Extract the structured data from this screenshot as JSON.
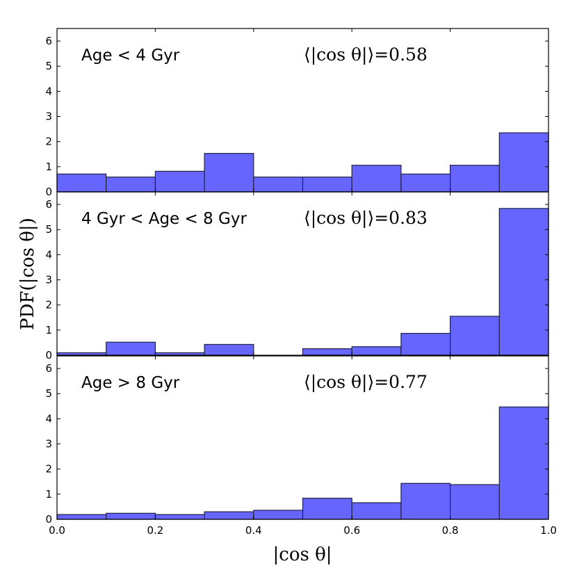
{
  "chart_data": {
    "type": "bar",
    "bins": [
      0.0,
      0.1,
      0.2,
      0.3,
      0.4,
      0.5,
      0.6,
      0.7,
      0.8,
      0.9,
      1.0
    ],
    "xlim": [
      0.0,
      1.0
    ],
    "ylim": [
      0,
      6.5
    ],
    "xticks": [
      "0.0",
      "0.2",
      "0.4",
      "0.6",
      "0.8",
      "1.0"
    ],
    "yticks": [
      "0",
      "1",
      "2",
      "3",
      "4",
      "5",
      "6"
    ],
    "xlabel": "|cos θ|",
    "ylabel": "PDF(|cos θ|)",
    "bar_color": "#6666ff",
    "edge_color": "#222244",
    "panels": [
      {
        "label": "Age < 4 Gyr",
        "stat": "⟨|cos θ|⟩=0.58",
        "values": [
          0.71,
          0.59,
          0.82,
          1.53,
          0.59,
          0.59,
          1.06,
          0.71,
          1.06,
          2.35
        ]
      },
      {
        "label": "4 Gyr < Age < 8 Gyr",
        "stat": "⟨|cos θ|⟩=0.83",
        "values": [
          0.1,
          0.52,
          0.1,
          0.43,
          0.0,
          0.26,
          0.34,
          0.87,
          1.55,
          5.84
        ]
      },
      {
        "label": "Age > 8 Gyr",
        "stat": "⟨|cos θ|⟩=0.77",
        "values": [
          0.19,
          0.24,
          0.19,
          0.3,
          0.36,
          0.84,
          0.66,
          1.43,
          1.38,
          4.47
        ]
      }
    ]
  }
}
